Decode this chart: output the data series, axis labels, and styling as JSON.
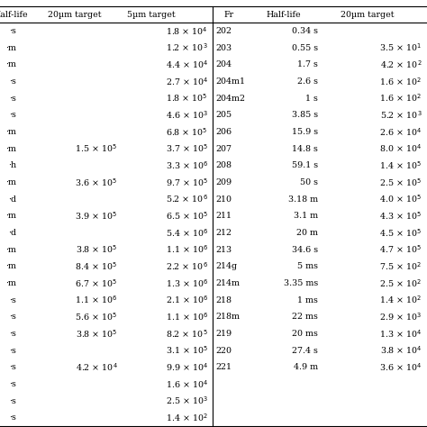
{
  "left_rows": [
    [
      "·s",
      "",
      "1.8 × 10$^4$"
    ],
    [
      "·m",
      "",
      "1.2 × 10$^3$"
    ],
    [
      "·m",
      "",
      "4.4 × 10$^4$"
    ],
    [
      "·s",
      "",
      "2.7 × 10$^4$"
    ],
    [
      "·s",
      "",
      "1.8 × 10$^5$"
    ],
    [
      "·s",
      "",
      "4.6 × 10$^3$"
    ],
    [
      "·m",
      "",
      "6.8 × 10$^5$"
    ],
    [
      "·m",
      "1.5 × 10$^5$",
      "3.7 × 10$^5$"
    ],
    [
      "·h",
      "",
      "3.3 × 10$^6$"
    ],
    [
      "·m",
      "3.6 × 10$^5$",
      "9.7 × 10$^5$"
    ],
    [
      "·d",
      "",
      "5.2 × 10$^6$"
    ],
    [
      "·m",
      "3.9 × 10$^5$",
      "6.5 × 10$^5$"
    ],
    [
      "·d",
      "",
      "5.4 × 10$^6$"
    ],
    [
      "·m",
      "3.8 × 10$^5$",
      "1.1 × 10$^6$"
    ],
    [
      "·m",
      "8.4 × 10$^5$",
      "2.2 × 10$^6$"
    ],
    [
      "·m",
      "6.7 × 10$^5$",
      "1.3 × 10$^6$"
    ],
    [
      "·s",
      "1.1 × 10$^6$",
      "2.1 × 10$^6$"
    ],
    [
      "·s",
      "5.6 × 10$^5$",
      "1.1 × 10$^6$"
    ],
    [
      "·s",
      "3.8 × 10$^5$",
      "8.2 × 10$^5$"
    ],
    [
      "·s",
      "",
      "3.1 × 10$^5$"
    ],
    [
      "·s",
      "4.2 × 10$^4$",
      "9.9 × 10$^4$"
    ],
    [
      "·s",
      "",
      "1.6 × 10$^4$"
    ],
    [
      "·s",
      "",
      "2.5 × 10$^3$"
    ],
    [
      "·s",
      "",
      "1.4 × 10$^2$"
    ]
  ],
  "right_rows": [
    [
      "202",
      "0.34 s",
      ""
    ],
    [
      "203",
      "0.55 s",
      "3.5 × 10$^1$"
    ],
    [
      "204",
      "1.7 s",
      "4.2 × 10$^2$"
    ],
    [
      "204m1",
      "2.6 s",
      "1.6 × 10$^2$"
    ],
    [
      "204m2",
      "1 s",
      "1.6 × 10$^2$"
    ],
    [
      "205",
      "3.85 s",
      "5.2 × 10$^3$"
    ],
    [
      "206",
      "15.9 s",
      "2.6 × 10$^4$"
    ],
    [
      "207",
      "14.8 s",
      "8.0 × 10$^4$"
    ],
    [
      "208",
      "59.1 s",
      "1.4 × 10$^5$"
    ],
    [
      "209",
      "50 s",
      "2.5 × 10$^5$"
    ],
    [
      "210",
      "3.18 m",
      "4.0 × 10$^5$"
    ],
    [
      "211",
      "3.1 m",
      "4.3 × 10$^5$"
    ],
    [
      "212",
      "20 m",
      "4.5 × 10$^5$"
    ],
    [
      "213",
      "34.6 s",
      "4.7 × 10$^5$"
    ],
    [
      "214g",
      "5 ms",
      "7.5 × 10$^2$"
    ],
    [
      "214m",
      "3.35 ms",
      "2.5 × 10$^2$"
    ],
    [
      "218",
      "1 ms",
      "1.4 × 10$^2$"
    ],
    [
      "218m",
      "22 ms",
      "2.9 × 10$^3$"
    ],
    [
      "219",
      "20 ms",
      "1.3 × 10$^4$"
    ],
    [
      "220",
      "27.4 s",
      "3.8 × 10$^4$"
    ],
    [
      "221",
      "4.9 m",
      "3.6 × 10$^4$"
    ]
  ],
  "bg_color": "#ffffff",
  "text_color": "#000000",
  "line_color": "#000000",
  "fontsize": 6.8,
  "fig_width": 4.74,
  "fig_height": 4.74,
  "dpi": 100
}
